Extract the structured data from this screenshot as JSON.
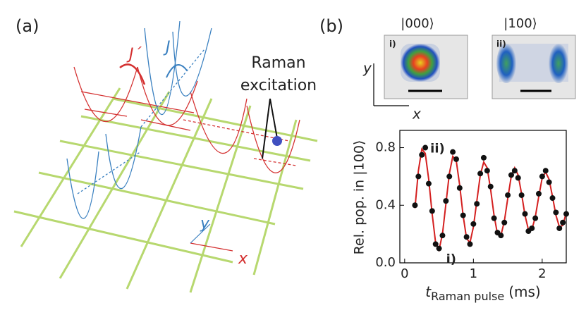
{
  "panel_a": {
    "label": "(a)",
    "j_prime": "J´",
    "j": "J",
    "raman_line1": "Raman",
    "raman_line2": "excitation",
    "axis_y": "y",
    "axis_x": "x"
  },
  "panel_b": {
    "label": "(b)",
    "state_left": "|000⟩",
    "state_right": "|100⟩",
    "image_left_tag": "i)",
    "image_right_tag": "ii)",
    "axis_y": "y",
    "axis_x": "x"
  },
  "chart_data": {
    "type": "scatter",
    "ylabel": "Rel. pop.  in |100⟩",
    "xlabel_symbol": "t",
    "xlabel_subscript": "Raman pulse",
    "xlabel_unit": "(ms)",
    "xlim": [
      -0.07,
      2.35
    ],
    "ylim": [
      0,
      0.92
    ],
    "xticks": [
      0,
      1,
      2
    ],
    "yticks": [
      {
        "value": 0,
        "label": "0.0"
      },
      0.4,
      0.8
    ],
    "annotations": [
      {
        "text": "ii)",
        "x": 0.27,
        "y": 0.8
      },
      {
        "text": "i)",
        "x": 0.5,
        "y": 0.09
      }
    ],
    "series": [
      {
        "name": "data",
        "color": "#111111",
        "x": [
          0.15,
          0.2,
          0.25,
          0.3,
          0.35,
          0.4,
          0.45,
          0.5,
          0.55,
          0.6,
          0.65,
          0.7,
          0.75,
          0.8,
          0.85,
          0.9,
          0.95,
          1.0,
          1.05,
          1.1,
          1.15,
          1.2,
          1.25,
          1.3,
          1.35,
          1.4,
          1.45,
          1.5,
          1.55,
          1.6,
          1.65,
          1.7,
          1.75,
          1.8,
          1.85,
          1.9,
          1.95,
          2.0,
          2.05,
          2.1,
          2.15,
          2.2,
          2.25,
          2.3,
          2.35
        ],
        "values": [
          0.4,
          0.6,
          0.75,
          0.8,
          0.55,
          0.36,
          0.13,
          0.1,
          0.19,
          0.43,
          0.6,
          0.77,
          0.72,
          0.52,
          0.33,
          0.18,
          0.13,
          0.27,
          0.41,
          0.62,
          0.73,
          0.64,
          0.53,
          0.31,
          0.21,
          0.19,
          0.28,
          0.47,
          0.61,
          0.64,
          0.59,
          0.47,
          0.34,
          0.22,
          0.24,
          0.31,
          0.48,
          0.6,
          0.64,
          0.56,
          0.45,
          0.35,
          0.24,
          0.28,
          0.34
        ]
      },
      {
        "name": "fit",
        "color": "#d42020",
        "x": [
          0.15,
          0.2,
          0.25,
          0.3,
          0.35,
          0.4,
          0.45,
          0.5,
          0.55,
          0.6,
          0.65,
          0.7,
          0.75,
          0.8,
          0.85,
          0.9,
          0.95,
          1.0,
          1.05,
          1.1,
          1.15,
          1.2,
          1.25,
          1.3,
          1.35,
          1.4,
          1.45,
          1.5,
          1.55,
          1.6,
          1.65,
          1.7,
          1.75,
          1.8,
          1.85,
          1.9,
          1.95,
          2.0,
          2.05,
          2.1,
          2.15,
          2.2,
          2.25,
          2.3,
          2.35
        ],
        "values": [
          0.38,
          0.64,
          0.79,
          0.76,
          0.58,
          0.34,
          0.14,
          0.09,
          0.2,
          0.41,
          0.62,
          0.74,
          0.71,
          0.54,
          0.33,
          0.17,
          0.14,
          0.25,
          0.43,
          0.61,
          0.7,
          0.66,
          0.51,
          0.33,
          0.2,
          0.19,
          0.29,
          0.45,
          0.6,
          0.66,
          0.61,
          0.48,
          0.33,
          0.23,
          0.23,
          0.32,
          0.46,
          0.59,
          0.63,
          0.58,
          0.46,
          0.33,
          0.25,
          0.26,
          0.35
        ]
      }
    ]
  }
}
